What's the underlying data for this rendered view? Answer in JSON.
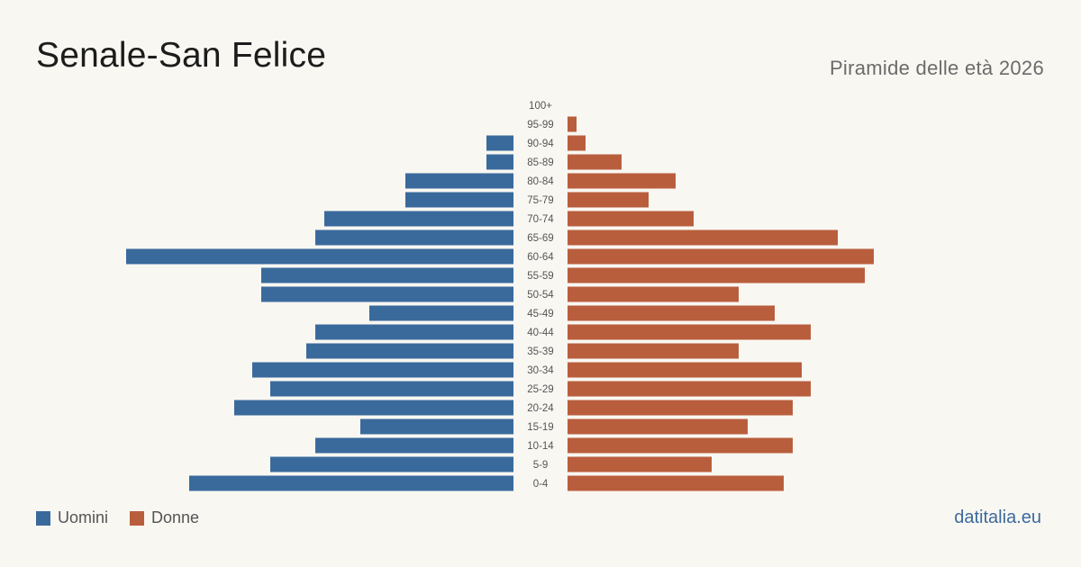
{
  "header": {
    "title": "Senale-San Felice",
    "subtitle": "Piramide delle età 2026"
  },
  "footer": {
    "source": "datitalia.eu"
  },
  "colors": {
    "men": "#3a6a9c",
    "women": "#b95e3d",
    "background": "#f9f7f2"
  },
  "chart_data": {
    "type": "bar",
    "orientation": "horizontal",
    "title": "Senale-San Felice",
    "subtitle": "Piramide delle età 2026",
    "categories": [
      "0-4",
      "5-9",
      "10-14",
      "15-19",
      "20-24",
      "25-29",
      "30-34",
      "35-39",
      "40-44",
      "45-49",
      "50-54",
      "55-59",
      "60-64",
      "65-69",
      "70-74",
      "75-79",
      "80-84",
      "85-89",
      "90-94",
      "95-99",
      "100+"
    ],
    "series": [
      {
        "name": "Uomini",
        "values": [
          18,
          13.5,
          11,
          8.5,
          15.5,
          13.5,
          14.5,
          11.5,
          11,
          8,
          14,
          14,
          21.5,
          11,
          10.5,
          6,
          6,
          1.5,
          1.5,
          0,
          0
        ]
      },
      {
        "name": "Donne",
        "values": [
          12,
          8,
          12.5,
          10,
          12.5,
          13.5,
          13,
          9.5,
          13.5,
          11.5,
          9.5,
          16.5,
          17,
          15,
          7,
          4.5,
          6,
          3,
          1,
          0.5,
          0
        ]
      }
    ],
    "legend_position": "bottom-left",
    "grid": false
  }
}
